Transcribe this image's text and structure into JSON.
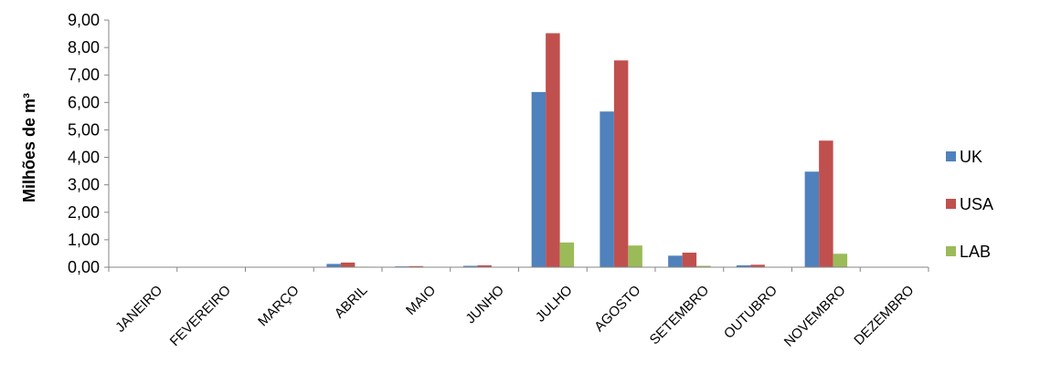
{
  "chart_data": {
    "type": "bar",
    "ylabel": "Milhões de m³",
    "ylim": [
      0,
      9
    ],
    "ytick_labels": [
      "0,00",
      "1,00",
      "2,00",
      "3,00",
      "4,00",
      "5,00",
      "6,00",
      "7,00",
      "8,00",
      "9,00"
    ],
    "categories": [
      "JANEIRO",
      "FEVEREIRO",
      "MARÇO",
      "ABRIL",
      "MAIO",
      "JUNHO",
      "JULHO",
      "AGOSTO",
      "SETEMBRO",
      "OUTUBRO",
      "NOVEMBRO",
      "DEZEMBRO"
    ],
    "series": [
      {
        "name": "UK",
        "color": "#4f81bd",
        "values": [
          0,
          0,
          0,
          0.12,
          0.03,
          0.05,
          6.38,
          5.67,
          0.42,
          0.07,
          3.48,
          0
        ]
      },
      {
        "name": "USA",
        "color": "#c0504d",
        "values": [
          0,
          0,
          0,
          0.17,
          0.04,
          0.07,
          8.52,
          7.53,
          0.53,
          0.09,
          4.61,
          0
        ]
      },
      {
        "name": "LAB",
        "color": "#9bbb59",
        "values": [
          0,
          0,
          0,
          0.02,
          0.01,
          0.01,
          0.9,
          0.79,
          0.05,
          0.01,
          0.49,
          0
        ]
      }
    ],
    "legend": "right",
    "grid": false
  }
}
